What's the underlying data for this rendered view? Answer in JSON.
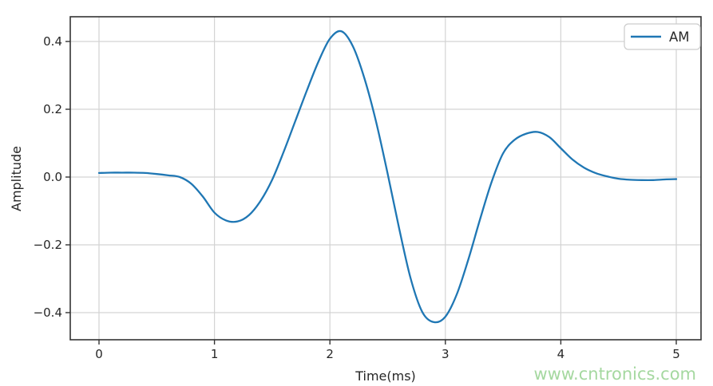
{
  "figure": {
    "background": "#ffffff",
    "watermark": {
      "text": "www.cntronics.com",
      "color": "#a5d8a0"
    }
  },
  "colors": {
    "grid": "#d3d3d3",
    "spine": "#333333",
    "tick_text": "#262626",
    "legend_border": "#cccccc",
    "legend_fill": "#ffffff",
    "series_blue": "#1f77b4"
  },
  "chart_data": {
    "type": "line",
    "title": "",
    "xlabel": "Time(ms)",
    "ylabel": "Amplitude",
    "xlim": [
      -0.25,
      5.25
    ],
    "ylim": [
      -0.473,
      0.473
    ],
    "grid": true,
    "xticks": {
      "values": [
        0,
        1,
        2,
        3,
        4,
        5
      ],
      "labels": [
        "0",
        "1",
        "2",
        "3",
        "4",
        "5"
      ]
    },
    "yticks": {
      "values": [
        0.4,
        0.2,
        0.0,
        -0.2,
        -0.4
      ],
      "labels": [
        "0.4",
        "0.2",
        "0.0",
        "−0.2",
        "−0.4"
      ]
    },
    "legend": {
      "position": "upper right",
      "entries": [
        {
          "label": "AM",
          "color": "#1f77b4"
        }
      ]
    },
    "series": [
      {
        "name": "AM",
        "color": "#1f77b4",
        "line_width": 2.3,
        "x": [
          0.0,
          0.1,
          0.2,
          0.3,
          0.4,
          0.5,
          0.6,
          0.7,
          0.8,
          0.9,
          1.0,
          1.1,
          1.2,
          1.3,
          1.4,
          1.5,
          1.6,
          1.7,
          1.8,
          1.9,
          2.0,
          2.1,
          2.2,
          2.3,
          2.4,
          2.5,
          2.6,
          2.7,
          2.8,
          2.9,
          3.0,
          3.1,
          3.2,
          3.3,
          3.4,
          3.5,
          3.6,
          3.7,
          3.8,
          3.9,
          4.0,
          4.1,
          4.2,
          4.3,
          4.4,
          4.5,
          4.6,
          4.7,
          4.8,
          4.9,
          5.0
        ],
        "y": [
          0.012,
          0.013,
          0.013,
          0.013,
          0.012,
          0.009,
          0.005,
          0.0,
          -0.02,
          -0.058,
          -0.105,
          -0.128,
          -0.131,
          -0.112,
          -0.07,
          -0.008,
          0.075,
          0.165,
          0.255,
          0.34,
          0.408,
          0.43,
          0.385,
          0.29,
          0.163,
          0.01,
          -0.152,
          -0.3,
          -0.398,
          -0.428,
          -0.412,
          -0.345,
          -0.242,
          -0.125,
          -0.015,
          0.07,
          0.11,
          0.128,
          0.133,
          0.118,
          0.085,
          0.052,
          0.028,
          0.012,
          0.002,
          -0.005,
          -0.008,
          -0.009,
          -0.009,
          -0.007,
          -0.006
        ]
      }
    ]
  }
}
